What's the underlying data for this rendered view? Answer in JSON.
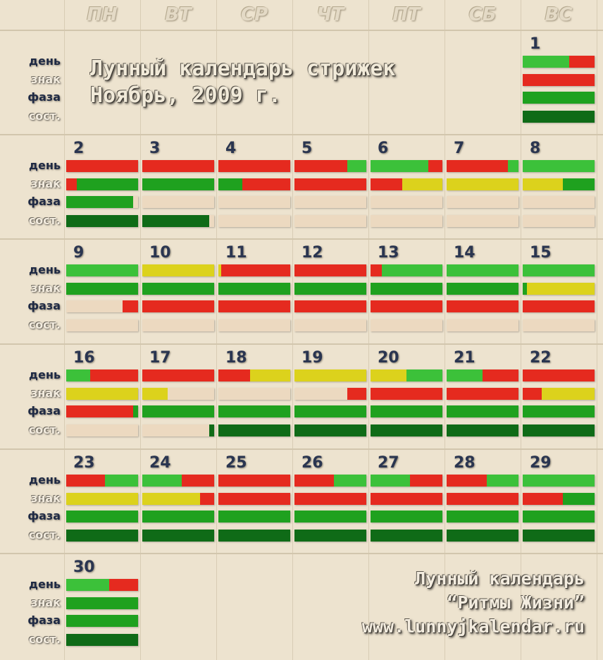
{
  "title": {
    "line1": "Лунный календарь стрижек",
    "line2": "Ноябрь, 2009 г."
  },
  "credits": {
    "line1": "Лунный календарь",
    "line2": "“Ритмы Жизни”",
    "line3": "www.lunnyjkalendar.ru"
  },
  "weekdays": [
    "ПН",
    "ВТ",
    "СР",
    "ЧТ",
    "ПТ",
    "СБ",
    "ВС"
  ],
  "row_labels": [
    "день",
    "знак",
    "фаза",
    "сост."
  ],
  "colors": {
    "red": "#e52a1f",
    "green": "#1fa11f",
    "light_green": "#3cc13a",
    "dark_green": "#0f6b17",
    "yellow": "#dcd21c",
    "empty": "#ecd9c0"
  },
  "days": [
    {
      "n": "1",
      "week": 0,
      "col": 6,
      "bars": [
        [
          [
            "L",
            0.65
          ],
          [
            "R",
            0.35
          ]
        ],
        [
          [
            "R",
            1
          ]
        ],
        [
          [
            "G",
            1
          ]
        ],
        [
          [
            "D",
            1
          ]
        ]
      ]
    },
    {
      "n": "2",
      "week": 1,
      "col": 0,
      "bars": [
        [
          [
            "R",
            1
          ]
        ],
        [
          [
            "R",
            0.15
          ],
          [
            "G",
            0.85
          ]
        ],
        [
          [
            "G",
            0.93
          ],
          [
            "E",
            0.07
          ]
        ],
        [
          [
            "D",
            1
          ]
        ]
      ]
    },
    {
      "n": "3",
      "week": 1,
      "col": 1,
      "bars": [
        [
          [
            "R",
            1
          ]
        ],
        [
          [
            "G",
            1
          ]
        ],
        [
          [
            "E",
            1
          ]
        ],
        [
          [
            "D",
            0.93
          ],
          [
            "E",
            0.07
          ]
        ]
      ]
    },
    {
      "n": "4",
      "week": 1,
      "col": 2,
      "bars": [
        [
          [
            "R",
            1
          ]
        ],
        [
          [
            "G",
            0.33
          ],
          [
            "R",
            0.67
          ]
        ],
        [
          [
            "E",
            1
          ]
        ],
        [
          [
            "E",
            1
          ]
        ]
      ]
    },
    {
      "n": "5",
      "week": 1,
      "col": 3,
      "bars": [
        [
          [
            "R",
            0.74
          ],
          [
            "L",
            0.26
          ]
        ],
        [
          [
            "R",
            1
          ]
        ],
        [
          [
            "E",
            1
          ]
        ],
        [
          [
            "E",
            1
          ]
        ]
      ]
    },
    {
      "n": "6",
      "week": 1,
      "col": 4,
      "bars": [
        [
          [
            "L",
            0.8
          ],
          [
            "R",
            0.2
          ]
        ],
        [
          [
            "R",
            0.44
          ],
          [
            "Y",
            0.56
          ]
        ],
        [
          [
            "E",
            1
          ]
        ],
        [
          [
            "E",
            1
          ]
        ]
      ]
    },
    {
      "n": "7",
      "week": 1,
      "col": 5,
      "bars": [
        [
          [
            "R",
            0.85
          ],
          [
            "L",
            0.15
          ]
        ],
        [
          [
            "Y",
            1
          ]
        ],
        [
          [
            "E",
            1
          ]
        ],
        [
          [
            "E",
            1
          ]
        ]
      ]
    },
    {
      "n": "8",
      "week": 1,
      "col": 6,
      "bars": [
        [
          [
            "L",
            1
          ]
        ],
        [
          [
            "Y",
            0.56
          ],
          [
            "G",
            0.44
          ]
        ],
        [
          [
            "E",
            1
          ]
        ],
        [
          [
            "E",
            1
          ]
        ]
      ]
    },
    {
      "n": "9",
      "week": 2,
      "col": 0,
      "bars": [
        [
          [
            "L",
            1
          ]
        ],
        [
          [
            "G",
            1
          ]
        ],
        [
          [
            "E",
            0.78
          ],
          [
            "R",
            0.22
          ]
        ],
        [
          [
            "E",
            1
          ]
        ]
      ]
    },
    {
      "n": "10",
      "week": 2,
      "col": 1,
      "bars": [
        [
          [
            "Y",
            1
          ]
        ],
        [
          [
            "G",
            1
          ]
        ],
        [
          [
            "R",
            1
          ]
        ],
        [
          [
            "E",
            1
          ]
        ]
      ]
    },
    {
      "n": "11",
      "week": 2,
      "col": 2,
      "bars": [
        [
          [
            "Y",
            0.04
          ],
          [
            "R",
            0.96
          ]
        ],
        [
          [
            "G",
            1
          ]
        ],
        [
          [
            "R",
            1
          ]
        ],
        [
          [
            "E",
            1
          ]
        ]
      ]
    },
    {
      "n": "12",
      "week": 2,
      "col": 3,
      "bars": [
        [
          [
            "R",
            1
          ]
        ],
        [
          [
            "G",
            1
          ]
        ],
        [
          [
            "R",
            1
          ]
        ],
        [
          [
            "E",
            1
          ]
        ]
      ]
    },
    {
      "n": "13",
      "week": 2,
      "col": 4,
      "bars": [
        [
          [
            "R",
            0.16
          ],
          [
            "L",
            0.84
          ]
        ],
        [
          [
            "G",
            1
          ]
        ],
        [
          [
            "R",
            1
          ]
        ],
        [
          [
            "E",
            1
          ]
        ]
      ]
    },
    {
      "n": "14",
      "week": 2,
      "col": 5,
      "bars": [
        [
          [
            "L",
            1
          ]
        ],
        [
          [
            "G",
            1
          ]
        ],
        [
          [
            "R",
            1
          ]
        ],
        [
          [
            "E",
            1
          ]
        ]
      ]
    },
    {
      "n": "15",
      "week": 2,
      "col": 6,
      "bars": [
        [
          [
            "L",
            1
          ]
        ],
        [
          [
            "G",
            0.06
          ],
          [
            "Y",
            0.94
          ]
        ],
        [
          [
            "R",
            1
          ]
        ],
        [
          [
            "E",
            1
          ]
        ]
      ]
    },
    {
      "n": "16",
      "week": 3,
      "col": 0,
      "bars": [
        [
          [
            "L",
            0.33
          ],
          [
            "R",
            0.67
          ]
        ],
        [
          [
            "Y",
            1
          ]
        ],
        [
          [
            "R",
            0.93
          ],
          [
            "G",
            0.07
          ]
        ],
        [
          [
            "E",
            1
          ]
        ]
      ]
    },
    {
      "n": "17",
      "week": 3,
      "col": 1,
      "bars": [
        [
          [
            "R",
            1
          ]
        ],
        [
          [
            "Y",
            0.35
          ],
          [
            "E",
            0.65
          ]
        ],
        [
          [
            "G",
            1
          ]
        ],
        [
          [
            "E",
            0.93
          ],
          [
            "D",
            0.07
          ]
        ]
      ]
    },
    {
      "n": "18",
      "week": 3,
      "col": 2,
      "bars": [
        [
          [
            "R",
            0.44
          ],
          [
            "Y",
            0.56
          ]
        ],
        [
          [
            "E",
            1
          ]
        ],
        [
          [
            "G",
            1
          ]
        ],
        [
          [
            "D",
            1
          ]
        ]
      ]
    },
    {
      "n": "19",
      "week": 3,
      "col": 3,
      "bars": [
        [
          [
            "Y",
            1
          ]
        ],
        [
          [
            "E",
            0.74
          ],
          [
            "R",
            0.26
          ]
        ],
        [
          [
            "G",
            1
          ]
        ],
        [
          [
            "D",
            1
          ]
        ]
      ]
    },
    {
      "n": "20",
      "week": 3,
      "col": 4,
      "bars": [
        [
          [
            "Y",
            0.5
          ],
          [
            "L",
            0.5
          ]
        ],
        [
          [
            "R",
            1
          ]
        ],
        [
          [
            "G",
            1
          ]
        ],
        [
          [
            "D",
            1
          ]
        ]
      ]
    },
    {
      "n": "21",
      "week": 3,
      "col": 5,
      "bars": [
        [
          [
            "L",
            0.5
          ],
          [
            "R",
            0.5
          ]
        ],
        [
          [
            "R",
            1
          ]
        ],
        [
          [
            "G",
            1
          ]
        ],
        [
          [
            "D",
            1
          ]
        ]
      ]
    },
    {
      "n": "22",
      "week": 3,
      "col": 6,
      "bars": [
        [
          [
            "R",
            1
          ]
        ],
        [
          [
            "R",
            0.26
          ],
          [
            "Y",
            0.74
          ]
        ],
        [
          [
            "G",
            1
          ]
        ],
        [
          [
            "D",
            1
          ]
        ]
      ]
    },
    {
      "n": "23",
      "week": 4,
      "col": 0,
      "bars": [
        [
          [
            "R",
            0.54
          ],
          [
            "L",
            0.46
          ]
        ],
        [
          [
            "Y",
            1
          ]
        ],
        [
          [
            "G",
            1
          ]
        ],
        [
          [
            "D",
            1
          ]
        ]
      ]
    },
    {
      "n": "24",
      "week": 4,
      "col": 1,
      "bars": [
        [
          [
            "L",
            0.55
          ],
          [
            "R",
            0.45
          ]
        ],
        [
          [
            "Y",
            0.8
          ],
          [
            "R",
            0.2
          ]
        ],
        [
          [
            "G",
            1
          ]
        ],
        [
          [
            "D",
            1
          ]
        ]
      ]
    },
    {
      "n": "25",
      "week": 4,
      "col": 2,
      "bars": [
        [
          [
            "R",
            1
          ]
        ],
        [
          [
            "R",
            1
          ]
        ],
        [
          [
            "G",
            1
          ]
        ],
        [
          [
            "D",
            1
          ]
        ]
      ]
    },
    {
      "n": "26",
      "week": 4,
      "col": 3,
      "bars": [
        [
          [
            "R",
            0.55
          ],
          [
            "L",
            0.45
          ]
        ],
        [
          [
            "R",
            1
          ]
        ],
        [
          [
            "G",
            1
          ]
        ],
        [
          [
            "D",
            1
          ]
        ]
      ]
    },
    {
      "n": "27",
      "week": 4,
      "col": 4,
      "bars": [
        [
          [
            "L",
            0.55
          ],
          [
            "R",
            0.45
          ]
        ],
        [
          [
            "R",
            1
          ]
        ],
        [
          [
            "G",
            1
          ]
        ],
        [
          [
            "D",
            1
          ]
        ]
      ]
    },
    {
      "n": "28",
      "week": 4,
      "col": 5,
      "bars": [
        [
          [
            "R",
            0.56
          ],
          [
            "L",
            0.44
          ]
        ],
        [
          [
            "R",
            1
          ]
        ],
        [
          [
            "G",
            1
          ]
        ],
        [
          [
            "D",
            1
          ]
        ]
      ]
    },
    {
      "n": "29",
      "week": 4,
      "col": 6,
      "bars": [
        [
          [
            "L",
            1
          ]
        ],
        [
          [
            "R",
            0.56
          ],
          [
            "G",
            0.44
          ]
        ],
        [
          [
            "G",
            1
          ]
        ],
        [
          [
            "D",
            1
          ]
        ]
      ]
    },
    {
      "n": "30",
      "week": 5,
      "col": 0,
      "bars": [
        [
          [
            "L",
            0.6
          ],
          [
            "R",
            0.4
          ]
        ],
        [
          [
            "G",
            1
          ]
        ],
        [
          [
            "G",
            1
          ]
        ],
        [
          [
            "D",
            1
          ]
        ]
      ]
    }
  ]
}
